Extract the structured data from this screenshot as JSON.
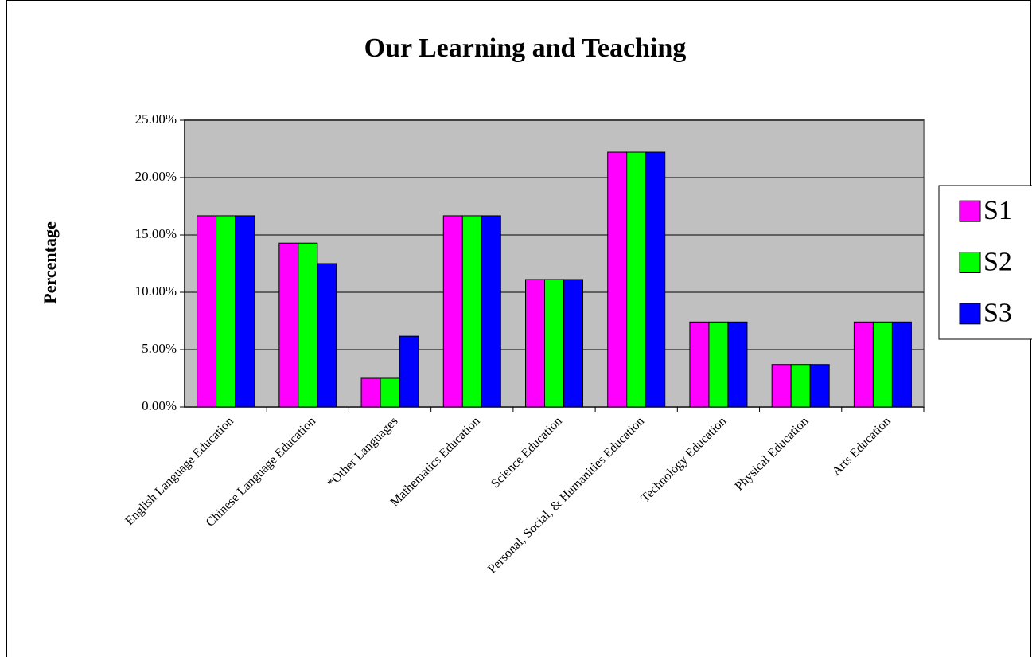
{
  "chart_data": {
    "type": "bar",
    "title": "Our Learning and Teaching",
    "y_label": "Percentage",
    "categories": [
      "English Language Education",
      "Chinese Language Education",
      "*Other Languages",
      "Mathematics Education",
      "Science Education",
      "Personal, Social, & Humanities Education",
      "Technology Education",
      "Physical Education",
      "Arts Education"
    ],
    "series": [
      {
        "name": "S1",
        "color": "#ff00ff",
        "values": [
          16.67,
          14.29,
          2.5,
          16.67,
          11.11,
          22.22,
          7.41,
          3.7,
          7.41
        ]
      },
      {
        "name": "S2",
        "color": "#00ff00",
        "values": [
          16.67,
          14.29,
          2.5,
          16.67,
          11.11,
          22.22,
          7.41,
          3.7,
          7.41
        ]
      },
      {
        "name": "S3",
        "color": "#0000ff",
        "values": [
          16.67,
          12.5,
          6.17,
          16.67,
          11.11,
          22.22,
          7.41,
          3.7,
          7.41
        ]
      }
    ],
    "ylim": [
      0,
      25
    ],
    "yticks": [
      {
        "value": 0,
        "label": "0.00%"
      },
      {
        "value": 5,
        "label": "5.00%"
      },
      {
        "value": 10,
        "label": "10.00%"
      },
      {
        "value": 15,
        "label": "15.00%"
      },
      {
        "value": 20,
        "label": "20.00%"
      },
      {
        "value": 25,
        "label": "25.00%"
      }
    ],
    "grid": true,
    "legend": "right"
  }
}
